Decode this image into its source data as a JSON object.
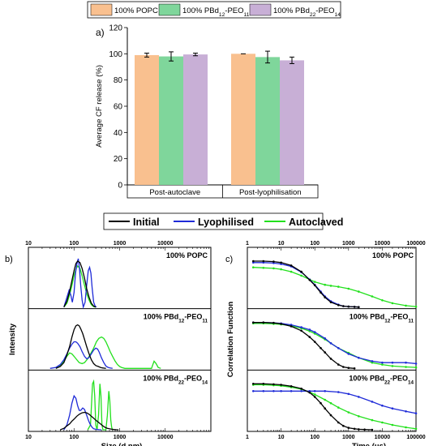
{
  "colors": {
    "popc": "#f9c08f",
    "pbd12": "#7fd69b",
    "pbd22": "#c8afd6",
    "initial": "#000000",
    "lyophilised": "#1f2bd8",
    "autoclaved": "#22e01c"
  },
  "chart_data": [
    {
      "panel": "a)",
      "type": "bar",
      "legend": [
        "100% POPC",
        "100% PBd12-PEO11",
        "100% PBd22-PEO14"
      ],
      "legend_placement": "top",
      "categories": [
        "Post-autoclave",
        "Post-lyophilisation"
      ],
      "series": [
        {
          "name": "100% POPC",
          "values": [
            99,
            100
          ],
          "errors": [
            1.5,
            0
          ]
        },
        {
          "name": "100% PBd12-PEO11",
          "values": [
            98,
            97.5
          ],
          "errors": [
            3.5,
            4.5
          ]
        },
        {
          "name": "100% PBd22-PEO14",
          "values": [
            99.5,
            95
          ],
          "errors": [
            1,
            2.5
          ]
        }
      ],
      "ylabel": "Average CF release (%)",
      "ylim": [
        0,
        120
      ],
      "yticks": [
        "0",
        "20",
        "40",
        "60",
        "80",
        "100",
        "120"
      ]
    },
    {
      "panel": "b)",
      "type": "line",
      "legend": [
        "Initial",
        "Lyophilised",
        "Autoclaved"
      ],
      "xlabel": "Size (d.nm)",
      "ylabel": "Intensity",
      "xscale": "log",
      "xlim": [
        10,
        100000
      ],
      "xticks": [
        "10",
        "100",
        "1000",
        "10000"
      ],
      "subpanels": [
        {
          "label": "100% POPC",
          "series": [
            {
              "name": "Initial",
              "x": [
                60,
                70,
                80,
                90,
                100,
                110,
                120,
                135,
                150,
                170,
                190,
                215,
                240,
                270,
                300
              ],
              "y": [
                0,
                0.12,
                0.32,
                0.55,
                0.75,
                0.9,
                0.95,
                0.92,
                0.8,
                0.6,
                0.38,
                0.2,
                0.08,
                0.02,
                0
              ]
            },
            {
              "name": "Lyophilised",
              "x": [
                60,
                70,
                78,
                85,
                92,
                100,
                108,
                116,
                124,
                132,
                140,
                150,
                160,
                175,
                190,
                205,
                220,
                235,
                250,
                270,
                290,
                310
              ],
              "y": [
                0,
                0.2,
                0.35,
                0.25,
                0.1,
                0.3,
                0.7,
                0.9,
                1.0,
                0.8,
                0.45,
                0.15,
                0,
                0.1,
                0.45,
                0.75,
                0.82,
                0.7,
                0.4,
                0.1,
                0.02,
                0
              ]
            },
            {
              "name": "Autoclaved",
              "x": [
                60,
                70,
                80,
                90,
                100,
                110,
                120,
                135,
                150,
                170,
                190,
                215,
                240,
                270,
                300
              ],
              "y": [
                0,
                0.08,
                0.25,
                0.45,
                0.65,
                0.78,
                0.85,
                0.8,
                0.65,
                0.45,
                0.28,
                0.14,
                0.05,
                0.01,
                0
              ]
            }
          ]
        },
        {
          "label": "100% PBd12-PEO11",
          "series": [
            {
              "name": "Initial",
              "x": [
                40,
                50,
                60,
                70,
                80,
                90,
                100,
                110,
                120,
                130,
                140,
                155,
                170,
                190,
                210,
                240,
                270,
                300,
                340,
                380,
                420,
                460,
                500
              ],
              "y": [
                0,
                0.04,
                0.12,
                0.28,
                0.45,
                0.65,
                0.8,
                0.88,
                0.9,
                0.88,
                0.82,
                0.72,
                0.6,
                0.45,
                0.32,
                0.18,
                0.1,
                0.06,
                0.04,
                0.02,
                0.01,
                0.005,
                0
              ]
            },
            {
              "name": "Lyophilised",
              "x": [
                30,
                40,
                50,
                60,
                70,
                80,
                90,
                100,
                110,
                120,
                135,
                150,
                170,
                190,
                210,
                240,
                270,
                300,
                330,
                360,
                400,
                450,
                500,
                560,
                620,
                700
              ],
              "y": [
                0,
                0.02,
                0.08,
                0.18,
                0.3,
                0.42,
                0.5,
                0.55,
                0.55,
                0.52,
                0.45,
                0.35,
                0.25,
                0.2,
                0.22,
                0.3,
                0.38,
                0.42,
                0.4,
                0.33,
                0.22,
                0.12,
                0.05,
                0.02,
                0.01,
                0
              ]
            },
            {
              "name": "Autoclaved",
              "x": [
                40,
                50,
                60,
                70,
                80,
                90,
                100,
                115,
                130,
                150,
                170,
                200,
                230,
                270,
                310,
                350,
                400,
                450,
                500,
                560,
                620,
                700,
                800,
                900,
                1000,
                1100,
                1300,
                5000,
                5700,
                6300,
                7000,
                8000
              ],
              "y": [
                0,
                0.05,
                0.15,
                0.25,
                0.32,
                0.3,
                0.25,
                0.18,
                0.12,
                0.1,
                0.12,
                0.2,
                0.3,
                0.42,
                0.55,
                0.62,
                0.65,
                0.62,
                0.55,
                0.45,
                0.35,
                0.25,
                0.15,
                0.08,
                0.04,
                0.02,
                0,
                0,
                0.15,
                0.1,
                0.02,
                0
              ]
            }
          ]
        },
        {
          "label": "100% PBd22-PEO14",
          "series": [
            {
              "name": "Initial",
              "x": [
                50,
                60,
                70,
                80,
                90,
                100,
                115,
                130,
                150,
                170,
                190,
                215,
                240,
                270,
                300,
                340,
                380,
                430,
                480,
                540,
                600,
                680,
                760,
                850,
                950
              ],
              "y": [
                0,
                0.03,
                0.08,
                0.12,
                0.18,
                0.22,
                0.28,
                0.32,
                0.35,
                0.36,
                0.35,
                0.32,
                0.28,
                0.24,
                0.2,
                0.16,
                0.12,
                0.08,
                0.05,
                0.03,
                0.02,
                0.01,
                0.005,
                0.002,
                0
              ]
            },
            {
              "name": "Lyophilised",
              "x": [
                60,
                70,
                80,
                90,
                100,
                110,
                120,
                130,
                140,
                155,
                170,
                190,
                210,
                230,
                250,
                270,
                300,
                330,
                360,
                400
              ],
              "y": [
                0,
                0.1,
                0.3,
                0.55,
                0.7,
                0.65,
                0.5,
                0.4,
                0.4,
                0.45,
                0.42,
                0.3,
                0.18,
                0.1,
                0.05,
                0.02,
                0.01,
                0.005,
                0.002,
                0
              ]
            },
            {
              "name": "Autoclaved",
              "x": [
                200,
                230,
                255,
                270,
                285,
                300,
                320,
                345,
                370,
                390,
                410,
                430,
                460,
                500,
                540,
                580,
                610,
                640,
                670,
                700
              ],
              "y": [
                0,
                0.1,
                0.95,
                1.0,
                0.7,
                0.1,
                0,
                0.3,
                0.95,
                0.7,
                0.1,
                0,
                0,
                0,
                0.3,
                0.8,
                0.6,
                0.2,
                0.05,
                0
              ]
            }
          ]
        }
      ]
    },
    {
      "panel": "c)",
      "type": "line",
      "xlabel": "Time (μs)",
      "ylabel": "Correlation Function",
      "xscale": "log",
      "xlim": [
        1,
        100000
      ],
      "xticks": [
        "1",
        "10",
        "100",
        "1000",
        "10000",
        "100000"
      ],
      "subpanels": [
        {
          "label": "100% POPC",
          "series": [
            {
              "name": "Initial",
              "x": [
                1.5,
                3,
                6,
                10,
                20,
                40,
                70,
                100,
                150,
                200,
                300,
                500,
                700,
                1000,
                1500,
                2000
              ],
              "y": [
                0.95,
                0.95,
                0.94,
                0.92,
                0.86,
                0.73,
                0.56,
                0.45,
                0.3,
                0.2,
                0.1,
                0.04,
                0.02,
                0.01,
                0.005,
                0
              ]
            },
            {
              "name": "Lyophilised",
              "x": [
                1.5,
                3,
                6,
                10,
                20,
                40,
                70,
                100,
                150,
                200,
                300,
                500,
                700,
                1000,
                1500,
                2000
              ],
              "y": [
                0.92,
                0.92,
                0.91,
                0.89,
                0.84,
                0.72,
                0.57,
                0.46,
                0.32,
                0.22,
                0.12,
                0.05,
                0.02,
                0.01,
                0.005,
                0
              ]
            },
            {
              "name": "Autoclaved",
              "x": [
                1.5,
                3,
                6,
                10,
                20,
                40,
                70,
                100,
                200,
                300,
                500,
                1000,
                2000,
                5000,
                10000,
                20000,
                50000,
                100000
              ],
              "y": [
                0.82,
                0.81,
                0.8,
                0.78,
                0.73,
                0.65,
                0.57,
                0.52,
                0.46,
                0.44,
                0.42,
                0.38,
                0.32,
                0.22,
                0.14,
                0.08,
                0.03,
                0.01
              ]
            }
          ]
        },
        {
          "label": "100% PBd12-PEO11",
          "series": [
            {
              "name": "Initial",
              "x": [
                1.5,
                3,
                6,
                10,
                20,
                40,
                70,
                100,
                150,
                200,
                300,
                500,
                700,
                1000,
                1500
              ],
              "y": [
                0.95,
                0.95,
                0.94,
                0.92,
                0.87,
                0.78,
                0.65,
                0.55,
                0.42,
                0.33,
                0.2,
                0.08,
                0.03,
                0.01,
                0
              ]
            },
            {
              "name": "Lyophilised",
              "x": [
                1.5,
                3,
                6,
                10,
                20,
                40,
                70,
                100,
                200,
                300,
                500,
                1000,
                2000,
                5000,
                10000,
                20000,
                50000,
                100000
              ],
              "y": [
                0.95,
                0.95,
                0.94,
                0.93,
                0.9,
                0.85,
                0.8,
                0.75,
                0.62,
                0.52,
                0.42,
                0.3,
                0.22,
                0.15,
                0.12,
                0.12,
                0.12,
                0.1
              ]
            },
            {
              "name": "Autoclaved",
              "x": [
                1.5,
                3,
                6,
                10,
                20,
                40,
                70,
                100,
                200,
                300,
                500,
                1000,
                2000,
                5000,
                10000,
                20000,
                50000,
                100000
              ],
              "y": [
                0.93,
                0.93,
                0.92,
                0.91,
                0.88,
                0.83,
                0.77,
                0.72,
                0.6,
                0.52,
                0.42,
                0.32,
                0.22,
                0.12,
                0.08,
                0.05,
                0.03,
                0.02
              ]
            }
          ]
        },
        {
          "label": "100% PBd22-PEO14",
          "series": [
            {
              "name": "Initial",
              "x": [
                1.5,
                3,
                6,
                10,
                20,
                40,
                70,
                100,
                150,
                200,
                300,
                500,
                700,
                1000,
                1500,
                2000,
                3000,
                5000
              ],
              "y": [
                0.95,
                0.95,
                0.94,
                0.93,
                0.9,
                0.85,
                0.77,
                0.68,
                0.55,
                0.44,
                0.3,
                0.15,
                0.08,
                0.04,
                0.02,
                0.01,
                0.005,
                0
              ]
            },
            {
              "name": "Lyophilised",
              "x": [
                1.5,
                3,
                6,
                10,
                20,
                40,
                70,
                100,
                200,
                500,
                1000,
                2000,
                5000,
                10000,
                20000,
                50000,
                100000
              ],
              "y": [
                0.8,
                0.8,
                0.8,
                0.8,
                0.8,
                0.8,
                0.8,
                0.8,
                0.8,
                0.78,
                0.74,
                0.68,
                0.58,
                0.5,
                0.44,
                0.38,
                0.34
              ]
            },
            {
              "name": "Autoclaved",
              "x": [
                1.5,
                3,
                6,
                10,
                20,
                40,
                70,
                100,
                200,
                300,
                500,
                1000,
                2000,
                5000,
                10000,
                20000,
                50000,
                100000
              ],
              "y": [
                0.93,
                0.93,
                0.92,
                0.91,
                0.88,
                0.84,
                0.78,
                0.73,
                0.62,
                0.55,
                0.46,
                0.36,
                0.28,
                0.2,
                0.15,
                0.1,
                0.05,
                0.02
              ]
            }
          ]
        }
      ]
    }
  ]
}
